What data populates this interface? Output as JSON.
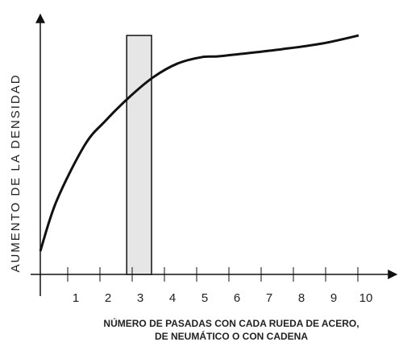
{
  "chart_data": {
    "type": "line",
    "ylabel": "AUMENTO DE LA DENSIDAD",
    "xlabel": [
      "NÚMERO DE PASADAS CON CADA RUEDA DE ACERO,",
      "DE NEUMÁTICO O CON CADENA"
    ],
    "x": [
      0,
      0.5,
      1.375,
      2,
      2.75,
      3.5,
      4.25,
      5,
      5.5,
      6.25,
      7.5,
      8.75,
      9.875
    ],
    "series": [
      {
        "color": "#111111",
        "values": [
          9,
          28.3,
          50,
          59.2,
          68.5,
          76.3,
          81.6,
          84.1,
          84.4,
          85.4,
          87.2,
          89.4,
          92.5
        ]
      }
    ],
    "highlight": {
      "xrange": [
        2.68,
        3.45
      ],
      "top": 92.5,
      "color": "#e6e6e6"
    },
    "xlim": [
      0,
      10.5
    ],
    "ylim": [
      0,
      100
    ],
    "xticks": [
      1,
      2,
      3,
      4,
      5,
      6,
      7,
      8,
      9,
      10
    ]
  }
}
